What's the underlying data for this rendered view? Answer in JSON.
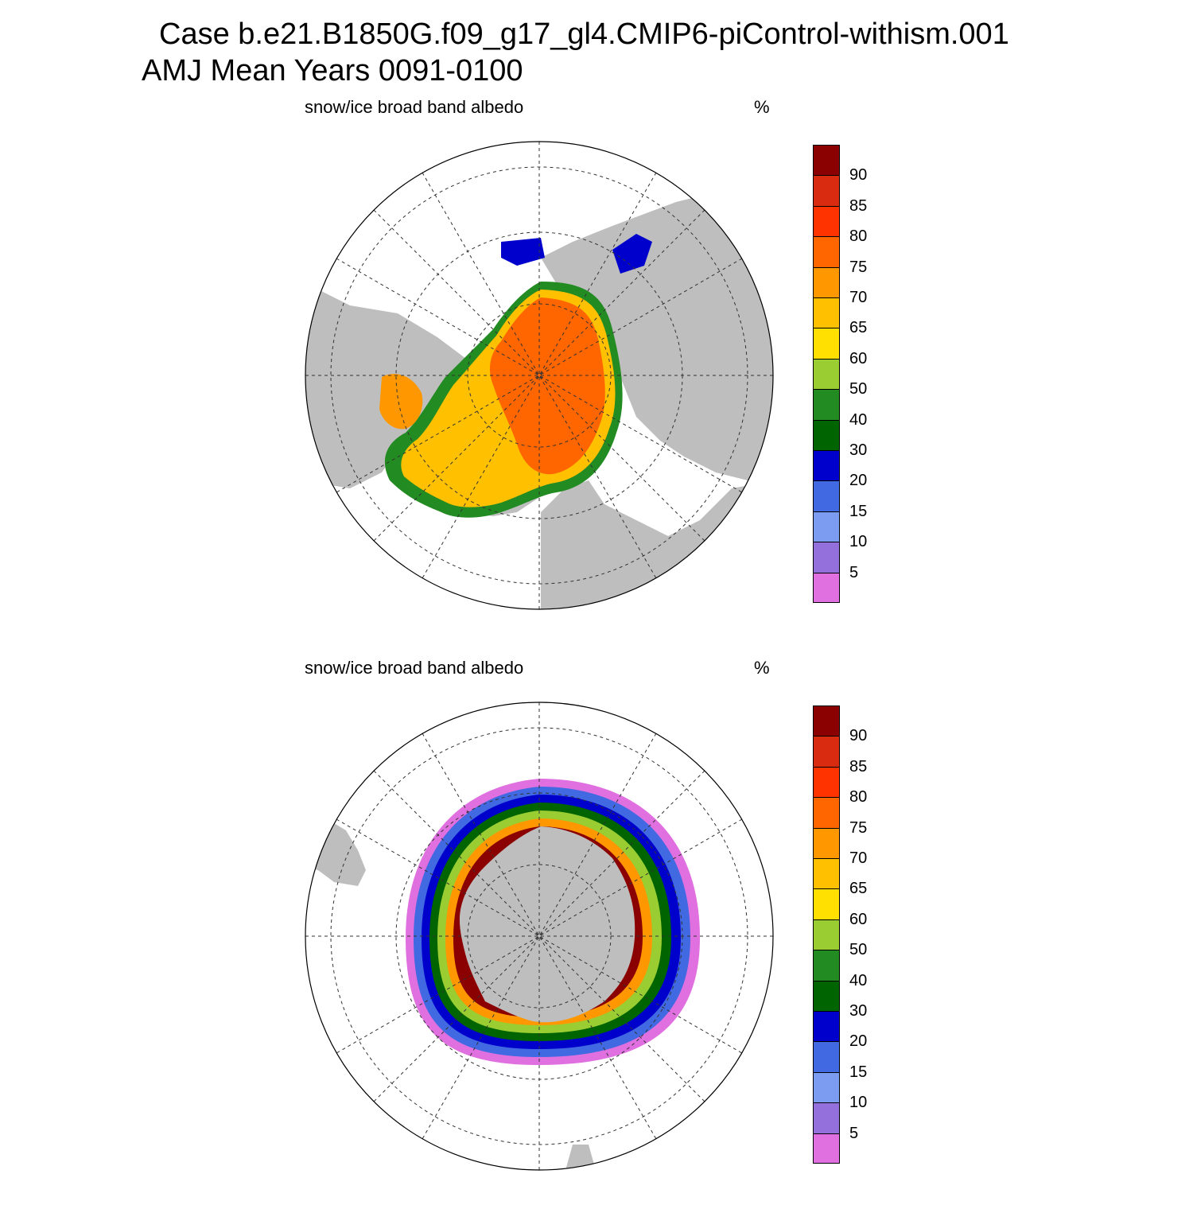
{
  "title": {
    "line1": "Case b.e21.B1850G.f09_g17_gl4.CMIP6-piControl-withism.001",
    "line2": "AMJ Mean   Years 0091-0100"
  },
  "panels": [
    {
      "id": "north",
      "hemisphere": "Northern",
      "variable_label": "snow/ice broad band albedo",
      "units": "%"
    },
    {
      "id": "south",
      "hemisphere": "Southern",
      "variable_label": "snow/ice broad band albedo",
      "units": "%"
    }
  ],
  "colorbar": {
    "levels": [
      "5",
      "10",
      "15",
      "20",
      "30",
      "40",
      "50",
      "60",
      "65",
      "70",
      "75",
      "80",
      "85",
      "90"
    ],
    "colors": [
      "#e070e0",
      "#9370db",
      "#7b9cf0",
      "#4169e1",
      "#0000cd",
      "#006400",
      "#228b22",
      "#9acd32",
      "#ffe000",
      "#ffc000",
      "#ff9800",
      "#ff6600",
      "#ff3300",
      "#d92b10",
      "#8b0000"
    ]
  },
  "map_style": {
    "land_color": "#bebebe",
    "ocean_color": "#ffffff",
    "grid_style": "dashed"
  }
}
